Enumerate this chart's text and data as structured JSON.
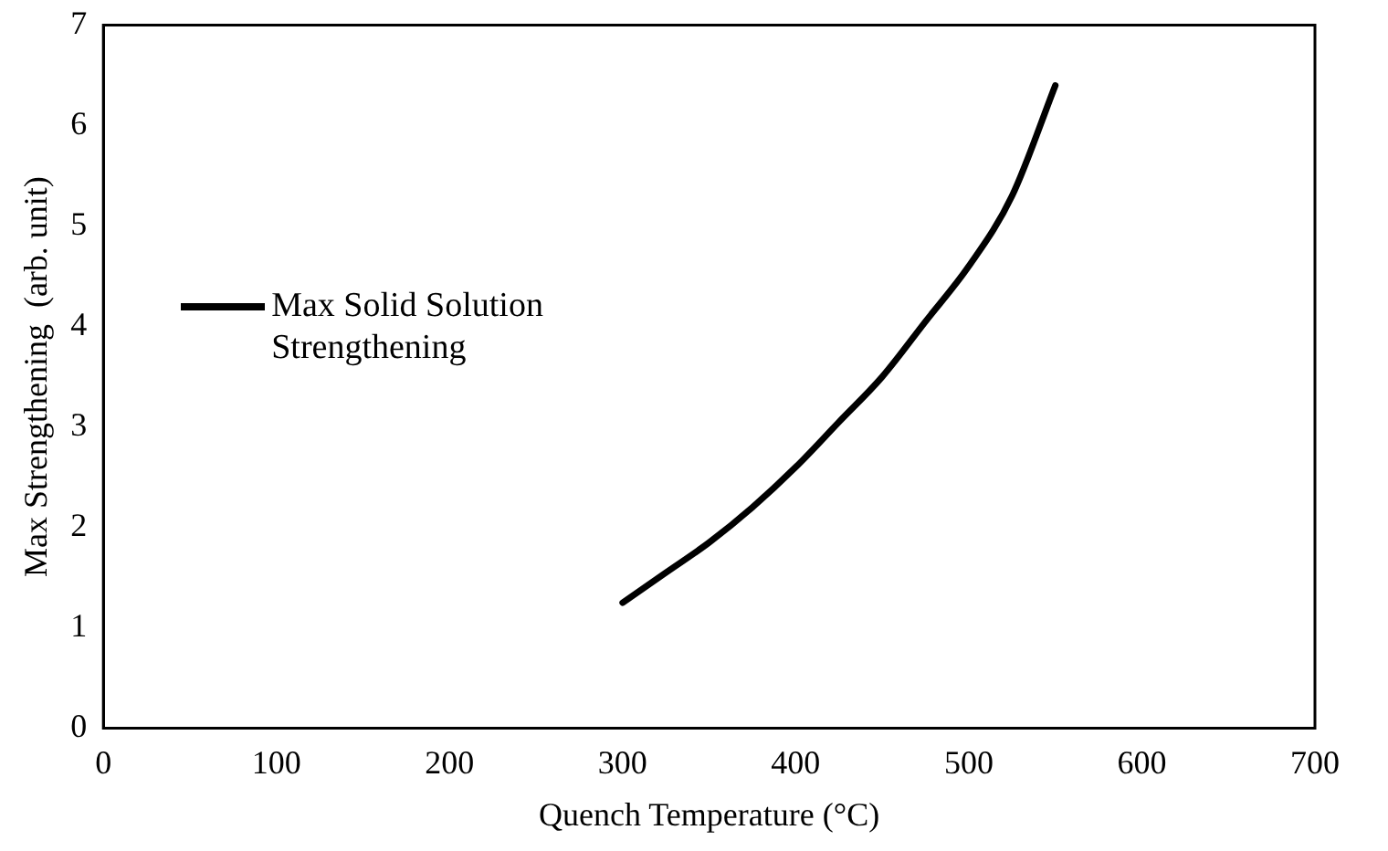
{
  "chart_data": {
    "type": "line",
    "xlabel": "Quench Temperature (°C)",
    "ylabel": "Max Strengthening  (arb. unit)",
    "xlim": [
      0,
      700
    ],
    "xticks": [
      0,
      100,
      200,
      300,
      400,
      500,
      600,
      700
    ],
    "ylim": [
      0,
      7
    ],
    "yticks": [
      0,
      1,
      2,
      3,
      4,
      5,
      6,
      7
    ],
    "grid": false,
    "legend": "left",
    "marker": "none",
    "line_style": "solid",
    "series": [
      {
        "name": "Max Solid Solution Strengthening",
        "color": "#000000",
        "x": [
          300,
          325,
          350,
          375,
          400,
          425,
          450,
          475,
          500,
          525,
          550
        ],
        "values": [
          1.25,
          1.55,
          1.85,
          2.2,
          2.6,
          3.05,
          3.5,
          4.05,
          4.6,
          5.3,
          6.4
        ]
      }
    ]
  }
}
